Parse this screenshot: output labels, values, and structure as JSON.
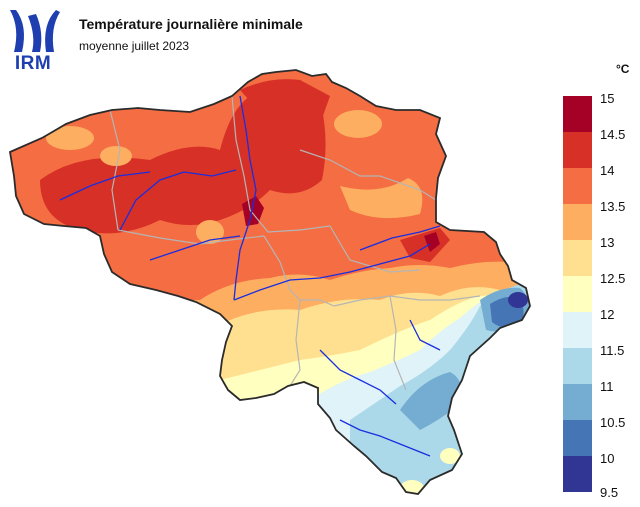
{
  "header": {
    "logo_text": "IRM",
    "title": "Température journalière minimale",
    "subtitle": "moyenne juillet 2023"
  },
  "legend": {
    "unit": "°C",
    "ticks": [
      "15",
      "14.5",
      "14",
      "13.5",
      "13",
      "12.5",
      "12",
      "11.5",
      "11",
      "10.5",
      "10",
      "9.5"
    ],
    "colors": [
      "#a50026",
      "#d73027",
      "#f46d43",
      "#fdae61",
      "#fee090",
      "#ffffbf",
      "#e0f3f8",
      "#abd9e9",
      "#74add1",
      "#4575b4",
      "#313695"
    ]
  },
  "map": {
    "region": "Belgium",
    "base_color": "#f46d43",
    "boundary_color": "#2b2b2b",
    "province_color": "#b5b5b5",
    "river_color": "#1a2ee0"
  }
}
